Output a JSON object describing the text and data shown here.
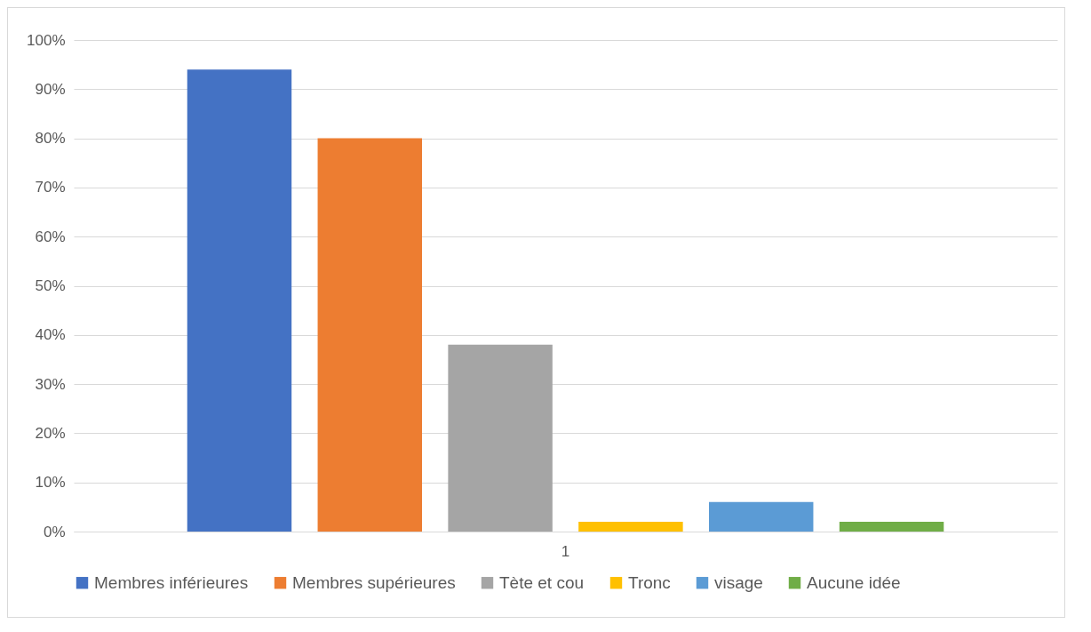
{
  "chart_data": {
    "type": "bar",
    "categories": [
      "1"
    ],
    "series": [
      {
        "name": "Membres inférieures",
        "color": "#4472c4",
        "values": [
          94
        ]
      },
      {
        "name": "Membres supérieures",
        "color": "#ed7d31",
        "values": [
          80
        ]
      },
      {
        "name": "Tète et cou",
        "color": "#a5a5a5",
        "values": [
          38
        ]
      },
      {
        "name": "Tronc",
        "color": "#ffc000",
        "values": [
          2
        ]
      },
      {
        "name": "visage",
        "color": "#5b9bd5",
        "values": [
          6
        ]
      },
      {
        "name": "Aucune idée",
        "color": "#70ad47",
        "values": [
          2
        ]
      }
    ],
    "ylim": [
      0,
      100
    ],
    "yticks": [
      {
        "value": 0,
        "label": "0%"
      },
      {
        "value": 10,
        "label": "10%"
      },
      {
        "value": 20,
        "label": "20%"
      },
      {
        "value": 30,
        "label": "30%"
      },
      {
        "value": 40,
        "label": "40%"
      },
      {
        "value": 50,
        "label": "50%"
      },
      {
        "value": 60,
        "label": "60%"
      },
      {
        "value": 70,
        "label": "70%"
      },
      {
        "value": 80,
        "label": "80%"
      },
      {
        "value": 90,
        "label": "90%"
      },
      {
        "value": 100,
        "label": "100%"
      }
    ],
    "grid": "y",
    "legend": "bottom"
  }
}
